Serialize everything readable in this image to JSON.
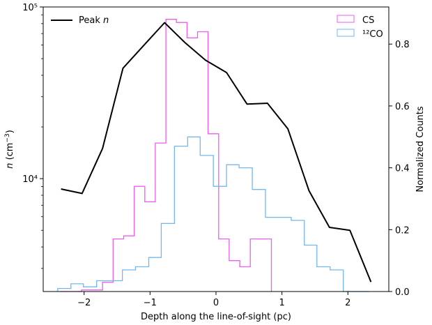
{
  "chart_data": {
    "type": "line",
    "xlabel": "Depth along the line-of-sight (pc)",
    "ylabel_left": "n (cm⁻³)",
    "ylabel_right": "Normalized Counts",
    "x_range": [
      -2.62,
      2.62
    ],
    "x_ticks": [
      -2,
      -1,
      0,
      1,
      2
    ],
    "x_tick_labels": [
      "−2",
      "−1",
      "0",
      "1",
      "2"
    ],
    "y_left_scale": "log",
    "y_left_range": [
      2200,
      100000
    ],
    "y_left_major_ticks": [
      10000,
      100000
    ],
    "y_left_major_labels": [
      "10⁴",
      "10⁵"
    ],
    "y_left_minor_ticks": [
      3000,
      4000,
      5000,
      6000,
      7000,
      8000,
      9000,
      20000,
      30000,
      40000,
      50000,
      60000,
      70000,
      80000,
      90000
    ],
    "y_right_range": [
      0,
      0.92
    ],
    "y_right_ticks": [
      0.0,
      0.2,
      0.4,
      0.6,
      0.8
    ],
    "y_right_tick_labels": [
      "0.0",
      "0.2",
      "0.4",
      "0.6",
      "0.8"
    ],
    "grid": false,
    "legend_left": {
      "placement": "top-left",
      "entries": [
        {
          "label": "Peak n",
          "color": "#000000"
        }
      ]
    },
    "legend_right": {
      "placement": "top-right",
      "entries": [
        {
          "label": "CS",
          "color": "#ee5ced"
        },
        {
          "label": "¹²CO",
          "color": "#72b8ee"
        }
      ]
    },
    "series": [
      {
        "name": "Peak n",
        "axis": "left",
        "style": "line",
        "color": "#000000",
        "x": [
          -2.35,
          -2.03,
          -1.72,
          -1.41,
          -1.09,
          -0.78,
          -0.47,
          -0.16,
          0.16,
          0.47,
          0.78,
          1.09,
          1.41,
          1.72,
          2.03,
          2.35
        ],
        "y": [
          8700,
          8200,
          15000,
          44000,
          60000,
          81000,
          62000,
          49000,
          41500,
          27200,
          27500,
          19500,
          8500,
          5200,
          5000,
          2500
        ]
      },
      {
        "name": "CS",
        "axis": "right",
        "style": "step",
        "color": "#ee5ced",
        "bin_edges": [
          -2.36,
          -2.2,
          -2.04,
          -1.88,
          -1.72,
          -1.56,
          -1.4,
          -1.24,
          -1.08,
          -0.92,
          -0.76,
          -0.6,
          -0.44,
          -0.28,
          -0.12,
          0.04,
          0.2,
          0.36,
          0.52,
          0.68,
          0.84
        ],
        "values": [
          0.0,
          0.0,
          0.005,
          0.005,
          0.03,
          0.17,
          0.18,
          0.34,
          0.29,
          0.48,
          0.88,
          0.87,
          0.82,
          0.84,
          0.51,
          0.17,
          0.1,
          0.08,
          0.17,
          0.17
        ]
      },
      {
        "name": "¹²CO",
        "axis": "right",
        "style": "step",
        "color": "#72b8ee",
        "bin_edges": [
          -2.4,
          -2.2,
          -2.01,
          -1.81,
          -1.61,
          -1.42,
          -1.22,
          -1.02,
          -0.83,
          -0.63,
          -0.43,
          -0.24,
          -0.04,
          0.16,
          0.35,
          0.55,
          0.75,
          0.94,
          1.14,
          1.34,
          1.53,
          1.73,
          1.93,
          2.12,
          2.32
        ],
        "values": [
          0.01,
          0.025,
          0.015,
          0.035,
          0.035,
          0.07,
          0.08,
          0.11,
          0.22,
          0.47,
          0.5,
          0.44,
          0.34,
          0.41,
          0.4,
          0.33,
          0.24,
          0.24,
          0.23,
          0.15,
          0.08,
          0.07,
          0.0,
          0.0
        ]
      }
    ]
  }
}
